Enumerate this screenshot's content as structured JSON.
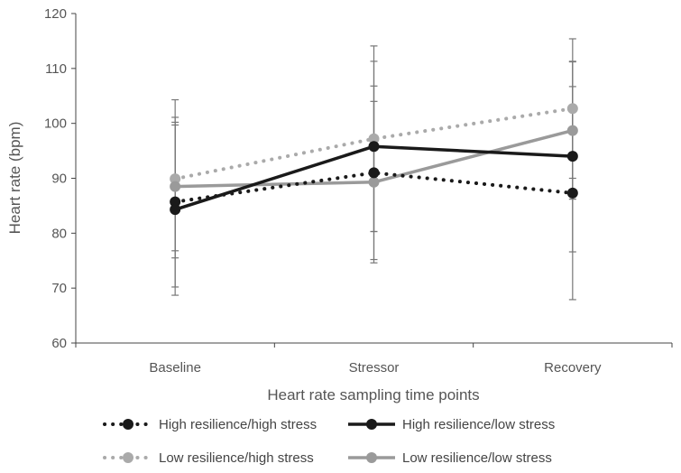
{
  "chart_data": {
    "type": "line",
    "title": "",
    "xlabel": "Heart rate sampling time points",
    "ylabel": "Heart rate (bpm)",
    "categories": [
      "Baseline",
      "Stressor",
      "Recovery"
    ],
    "ylim": [
      60,
      120
    ],
    "yticks": [
      60,
      70,
      80,
      90,
      100,
      110,
      120
    ],
    "grid": false,
    "legend_position": "bottom",
    "series": [
      {
        "name": "High resilience/high stress",
        "values": [
          85.7,
          91.0,
          87.3
        ],
        "error_low": [
          70.2,
          75.2,
          67.9
        ],
        "error_high": [
          101.1,
          106.8,
          106.7
        ],
        "color": "#1a1a1a",
        "line_style": "dotted"
      },
      {
        "name": "High resilience/low stress",
        "values": [
          84.3,
          95.8,
          94.0
        ],
        "error_low": [
          68.7,
          80.3,
          76.6
        ],
        "error_high": [
          99.7,
          111.3,
          111.3
        ],
        "color": "#1a1a1a",
        "line_style": "solid"
      },
      {
        "name": "Low resilience/high stress",
        "values": [
          89.9,
          97.2,
          102.7
        ],
        "error_low": [
          75.5,
          80.3,
          90.0
        ],
        "error_high": [
          104.3,
          114.1,
          115.4
        ],
        "color": "#aaaaaa",
        "line_style": "dotted"
      },
      {
        "name": "Low resilience/low stress",
        "values": [
          88.5,
          89.3,
          98.7
        ],
        "error_low": [
          76.8,
          74.6,
          86.2
        ],
        "error_high": [
          100.2,
          104.0,
          111.2
        ],
        "color": "#9a9a9a",
        "line_style": "solid"
      }
    ]
  }
}
